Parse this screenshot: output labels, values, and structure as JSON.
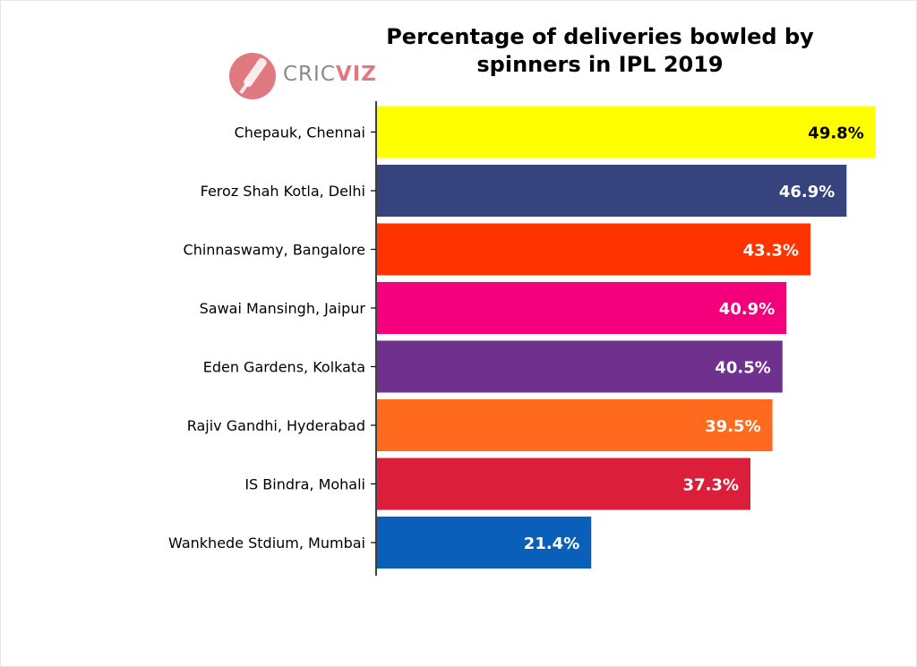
{
  "logo": {
    "text_light": "CRIC",
    "text_bold": "VIZ",
    "icon": "cricket-bat-icon",
    "color": "#e07a80"
  },
  "chart_data": {
    "type": "bar",
    "orientation": "horizontal",
    "title": "Percentage of deliveries bowled by spinners in IPL 2019",
    "categories": [
      "Chepauk, Chennai",
      "Feroz Shah Kotla, Delhi",
      "Chinnaswamy, Bangalore",
      "Sawai Mansingh, Jaipur",
      "Eden Gardens, Kolkata",
      "Rajiv Gandhi, Hyderabad",
      "IS Bindra, Mohali",
      "Wankhede Stdium, Mumbai"
    ],
    "values": [
      49.8,
      46.9,
      43.3,
      40.9,
      40.5,
      39.5,
      37.3,
      21.4
    ],
    "data_labels": [
      "49.8%",
      "46.9%",
      "43.3%",
      "40.9%",
      "40.5%",
      "39.5%",
      "37.3%",
      "21.4%"
    ],
    "colors": [
      "#ffff00",
      "#36437c",
      "#ff3300",
      "#f5007c",
      "#70308e",
      "#ff6a1f",
      "#db1f3b",
      "#0a5fb8"
    ],
    "label_colors": [
      "#000000",
      "#ffffff",
      "#ffffff",
      "#ffffff",
      "#ffffff",
      "#ffffff",
      "#ffffff",
      "#ffffff"
    ],
    "xlim": [
      0,
      50
    ],
    "grid": false,
    "x_axis_visible": false
  }
}
